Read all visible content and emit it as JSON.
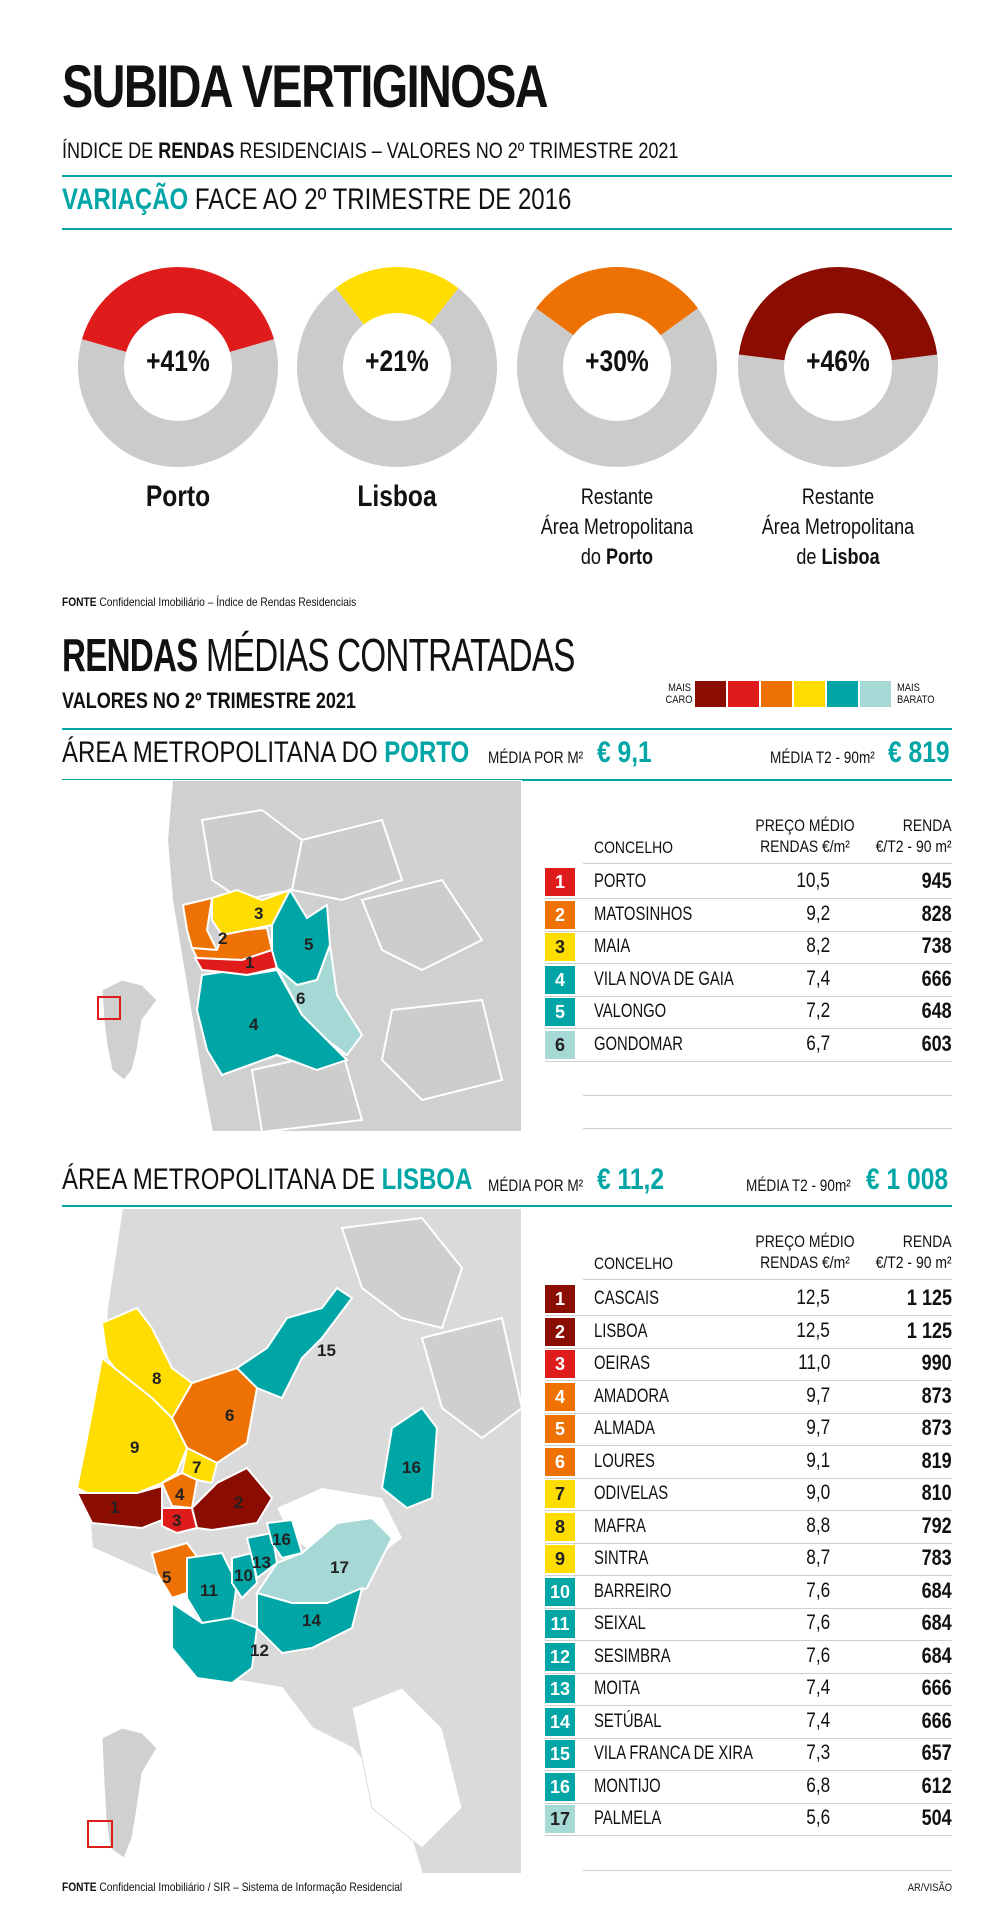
{
  "header": {
    "title": "SUBIDA VERTIGINOSA",
    "subtitle_pre": "ÍNDICE DE ",
    "subtitle_bold": "RENDAS",
    "subtitle_post": " RESIDENCIAIS – VALORES NO 2º TRIMESTRE 2021",
    "variation_bold": "VARIAÇÃO",
    "variation_rest": " FACE AO 2º TRIMESTRE DE 2016"
  },
  "chart_data": [
    {
      "type": "pie",
      "title": "VARIAÇÃO FACE AO 2º TRIMESTRE DE 2016",
      "items": [
        {
          "label": "+41%",
          "value": 41,
          "color": "#e01b1b",
          "caption_lines": [
            "Porto"
          ],
          "caption_bold": "Porto"
        },
        {
          "label": "+21%",
          "value": 21,
          "color": "#ffdd00",
          "caption_lines": [
            "Lisboa"
          ],
          "caption_bold": "Lisboa"
        },
        {
          "label": "+30%",
          "value": 30,
          "color": "#ee7203",
          "caption_lines": [
            "Restante",
            "Área Metropolitana",
            "do "
          ],
          "caption_bold": "Porto"
        },
        {
          "label": "+46%",
          "value": 46,
          "color": "#8b0c00",
          "caption_lines": [
            "Restante",
            "Área Metropolitana",
            "de "
          ],
          "caption_bold": "Lisboa"
        }
      ]
    },
    {
      "type": "table",
      "title": "ÁREA METROPOLITANA DO PORTO",
      "columns": [
        "CONCELHO",
        "PREÇO MÉDIO RENDAS €/m²",
        "RENDA €/T2 - 90 m²"
      ],
      "rows": [
        {
          "n": "1",
          "name": "PORTO",
          "price": "10,5",
          "rent": "945",
          "color": "#e01b1b"
        },
        {
          "n": "2",
          "name": "MATOSINHOS",
          "price": "9,2",
          "rent": "828",
          "color": "#ee7203"
        },
        {
          "n": "3",
          "name": "MAIA",
          "price": "8,2",
          "rent": "738",
          "color": "#ffdd00"
        },
        {
          "n": "4",
          "name": "VILA NOVA DE GAIA",
          "price": "7,4",
          "rent": "666",
          "color": "#00a6a6"
        },
        {
          "n": "5",
          "name": "VALONGO",
          "price": "7,2",
          "rent": "648",
          "color": "#00a6a6"
        },
        {
          "n": "6",
          "name": "GONDOMAR",
          "price": "6,7",
          "rent": "603",
          "color": "#a6d8d6"
        }
      ]
    },
    {
      "type": "table",
      "title": "ÁREA METROPOLITANA DE LISBOA",
      "columns": [
        "CONCELHO",
        "PREÇO MÉDIO RENDAS €/m²",
        "RENDA €/T2 - 90 m²"
      ],
      "rows": [
        {
          "n": "1",
          "name": "CASCAIS",
          "price": "12,5",
          "rent": "1 125",
          "color": "#8b0c00"
        },
        {
          "n": "2",
          "name": "LISBOA",
          "price": "12,5",
          "rent": "1 125",
          "color": "#8b0c00"
        },
        {
          "n": "3",
          "name": "OEIRAS",
          "price": "11,0",
          "rent": "990",
          "color": "#e01b1b"
        },
        {
          "n": "4",
          "name": "AMADORA",
          "price": "9,7",
          "rent": "873",
          "color": "#ee7203"
        },
        {
          "n": "5",
          "name": "ALMADA",
          "price": "9,7",
          "rent": "873",
          "color": "#ee7203"
        },
        {
          "n": "6",
          "name": "LOURES",
          "price": "9,1",
          "rent": "819",
          "color": "#ee7203"
        },
        {
          "n": "7",
          "name": "ODIVELAS",
          "price": "9,0",
          "rent": "810",
          "color": "#ffdd00"
        },
        {
          "n": "8",
          "name": "MAFRA",
          "price": "8,8",
          "rent": "792",
          "color": "#ffdd00"
        },
        {
          "n": "9",
          "name": "SINTRA",
          "price": "8,7",
          "rent": "783",
          "color": "#ffdd00"
        },
        {
          "n": "10",
          "name": "BARREIRO",
          "price": "7,6",
          "rent": "684",
          "color": "#00a6a6"
        },
        {
          "n": "11",
          "name": "SEIXAL",
          "price": "7,6",
          "rent": "684",
          "color": "#00a6a6"
        },
        {
          "n": "12",
          "name": "SESIMBRA",
          "price": "7,6",
          "rent": "684",
          "color": "#00a6a6"
        },
        {
          "n": "13",
          "name": "MOITA",
          "price": "7,4",
          "rent": "666",
          "color": "#00a6a6"
        },
        {
          "n": "14",
          "name": "SETÚBAL",
          "price": "7,4",
          "rent": "666",
          "color": "#00a6a6"
        },
        {
          "n": "15",
          "name": "VILA FRANCA DE XIRA",
          "price": "7,3",
          "rent": "657",
          "color": "#00a6a6"
        },
        {
          "n": "16",
          "name": "MONTIJO",
          "price": "6,8",
          "rent": "612",
          "color": "#00a6a6"
        },
        {
          "n": "17",
          "name": "PALMELA",
          "price": "5,6",
          "rent": "504",
          "color": "#a6d8d6"
        }
      ]
    }
  ],
  "source1": {
    "bold": "FONTE",
    "text": " Confidencial Imobiliário – Índice de Rendas Residenciais"
  },
  "section2": {
    "title_bold": "RENDAS",
    "title_rest": " MÉDIAS CONTRATADAS",
    "subtitle": "VALORES NO 2º TRIMESTRE 2021",
    "legend_left": "MAIS CARO",
    "legend_right": "MAIS BARATO",
    "legend_colors": [
      "#8b0c00",
      "#e01b1b",
      "#ee7203",
      "#ffdd00",
      "#00a6a6",
      "#a6d8d6"
    ]
  },
  "porto": {
    "title_pre": "ÁREA METROPOLITANA DO ",
    "title_bold": "PORTO",
    "media_m2_label": "MÉDIA POR M²",
    "media_m2_value": "€ 9,1",
    "media_t2_label": "MÉDIA T2 - 90m²",
    "media_t2_value": "€ 819"
  },
  "lisboa": {
    "title_pre": "ÁREA METROPOLITANA DE ",
    "title_bold": "LISBOA",
    "media_m2_label": "MÉDIA POR M²",
    "media_m2_value": "€ 11,2",
    "media_t2_label": "MÉDIA T2 - 90m²",
    "media_t2_value": "€ 1 008"
  },
  "table_headers": {
    "concelho": "CONCELHO",
    "price_1": "PREÇO MÉDIO",
    "price_2_porto": "RENDAS €/m²",
    "price_2_lisboa": "RENDAS €/m²",
    "rent_1": "RENDA",
    "rent_2": "€/T2 - 90 m²"
  },
  "source2": {
    "bold": "FONTE",
    "text": " Confidencial Imobiliário / SIR – Sistema de Informação Residencial"
  },
  "credit": "AR/VISÃO"
}
